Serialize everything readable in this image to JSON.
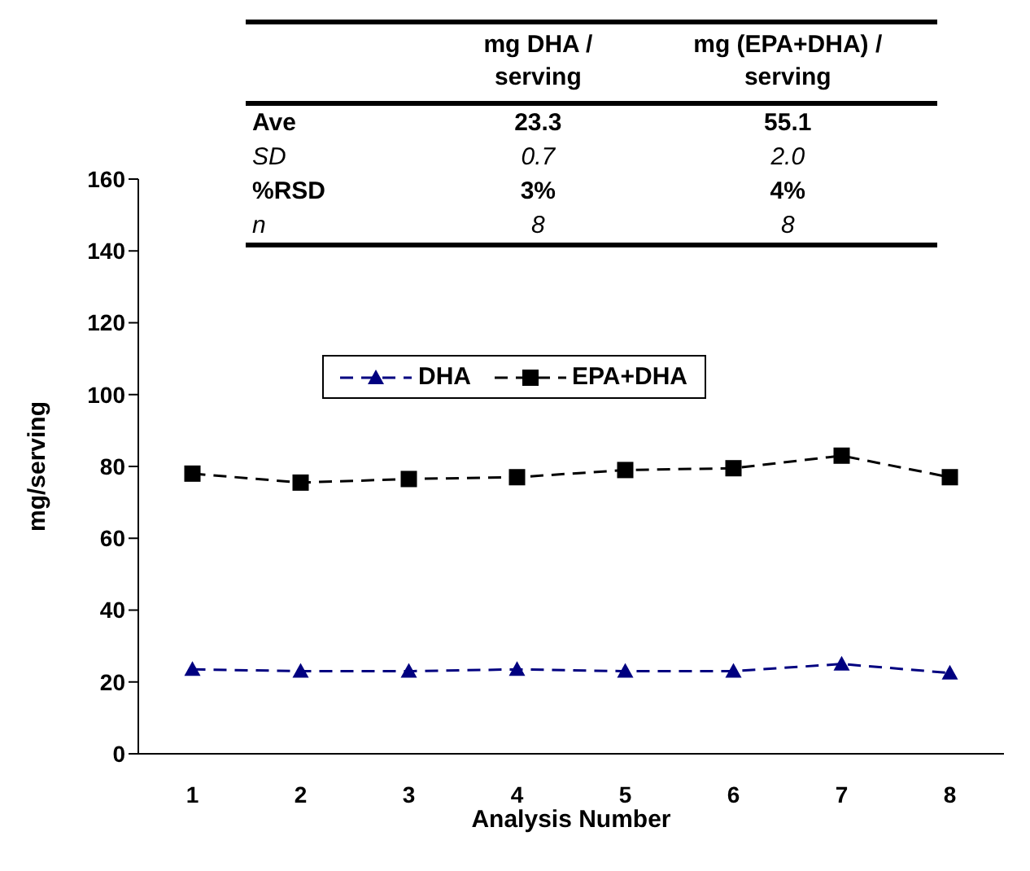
{
  "chart_data": {
    "type": "line",
    "xlabel": "Analysis Number",
    "ylabel": "mg/serving",
    "categories": [
      "1",
      "2",
      "3",
      "4",
      "5",
      "6",
      "7",
      "8"
    ],
    "series": [
      {
        "name": "DHA",
        "color": "#000080",
        "marker": "triangle",
        "line_style": "dashed",
        "values": [
          23.5,
          23,
          23,
          23.5,
          23,
          23,
          25,
          22.5
        ]
      },
      {
        "name": "EPA+DHA",
        "color": "#000000",
        "marker": "square",
        "line_style": "dashed",
        "values": [
          78,
          75.5,
          76.5,
          77,
          79,
          79.5,
          83,
          77
        ]
      }
    ],
    "ylim": [
      0,
      160
    ],
    "yticks": [
      0,
      20,
      40,
      60,
      80,
      100,
      120,
      140,
      160
    ],
    "grid": false,
    "legend": "top",
    "annotations": [
      "mg DHA / serving",
      "mg (EPA+DHA) / serving",
      "Ave",
      "23.3",
      "55.1",
      "SD",
      "0.7",
      "2.0",
      "%RSD",
      "3%",
      "4%",
      "n",
      "8",
      "8"
    ]
  }
}
